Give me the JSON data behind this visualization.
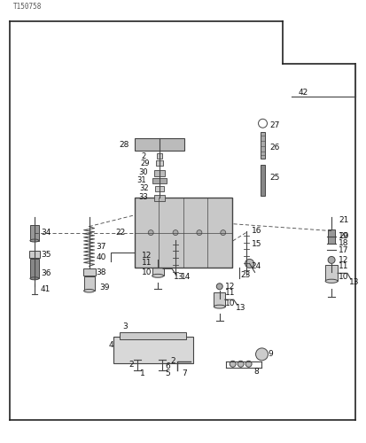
{
  "bg_color": "#ffffff",
  "border_color": "#222222",
  "lc": "#444444",
  "part_number": "T150758",
  "fig_width": 4.13,
  "fig_height": 5.0,
  "dpi": 100
}
